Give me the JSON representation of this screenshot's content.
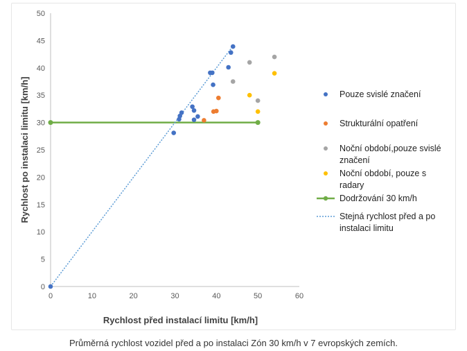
{
  "caption": "Průměrná rychlost vozidel před a po instalaci Zón 30 km/h v 7 evropských zemích.",
  "chart_data": {
    "type": "scatter",
    "xlabel": "Rychlost před instalací limitu [km/h]",
    "ylabel": "Rychlost po instalaci limitu [km/h]",
    "xlim": [
      0,
      60
    ],
    "ylim": [
      0,
      50
    ],
    "xticks": [
      "0",
      "10",
      "20",
      "30",
      "40",
      "50",
      "60"
    ],
    "yticks": [
      "0",
      "5",
      "10",
      "15",
      "20",
      "25",
      "30",
      "35",
      "40",
      "45",
      "50"
    ],
    "grid": false,
    "legend_position": "right",
    "series": [
      {
        "name": "Pouze svislé značení",
        "color": "#4472C4",
        "marker": "circle",
        "points": [
          [
            0,
            0
          ],
          [
            29.7,
            28.1
          ],
          [
            31,
            30.6
          ],
          [
            31.2,
            31.2
          ],
          [
            31.6,
            31.8
          ],
          [
            34.2,
            32.9
          ],
          [
            34.6,
            32.2
          ],
          [
            35.5,
            31.1
          ],
          [
            34.6,
            30.5
          ],
          [
            38.5,
            39.1
          ],
          [
            39,
            39.1
          ],
          [
            39.2,
            36.9
          ],
          [
            42.9,
            40.1
          ],
          [
            43.5,
            42.8
          ],
          [
            44,
            43.9
          ]
        ]
      },
      {
        "name": "Strukturální opatření",
        "color": "#ED7D31",
        "marker": "circle",
        "points": [
          [
            37,
            30.4
          ],
          [
            39.3,
            32
          ],
          [
            40,
            32.1
          ],
          [
            40.5,
            34.5
          ]
        ]
      },
      {
        "name": "Noční období,pouze svislé značení",
        "color": "#A5A5A5",
        "marker": "circle",
        "points": [
          [
            44,
            37.5
          ],
          [
            48,
            41
          ],
          [
            50,
            34
          ],
          [
            54,
            42
          ]
        ]
      },
      {
        "name": "Noční období, pouze s radary",
        "color": "#FFC000",
        "marker": "circle",
        "points": [
          [
            48,
            35
          ],
          [
            50,
            32
          ],
          [
            54,
            39
          ]
        ]
      },
      {
        "name": "Dodržování 30 km/h",
        "color": "#70AD47",
        "marker": "line",
        "points": [
          [
            0,
            30
          ],
          [
            50,
            30
          ]
        ]
      },
      {
        "name": "Stejná rychlost před a po instalaci limitu",
        "color": "#5B9BD5",
        "marker": "dotted-line",
        "points": [
          [
            0,
            0
          ],
          [
            44,
            44
          ]
        ]
      }
    ]
  }
}
